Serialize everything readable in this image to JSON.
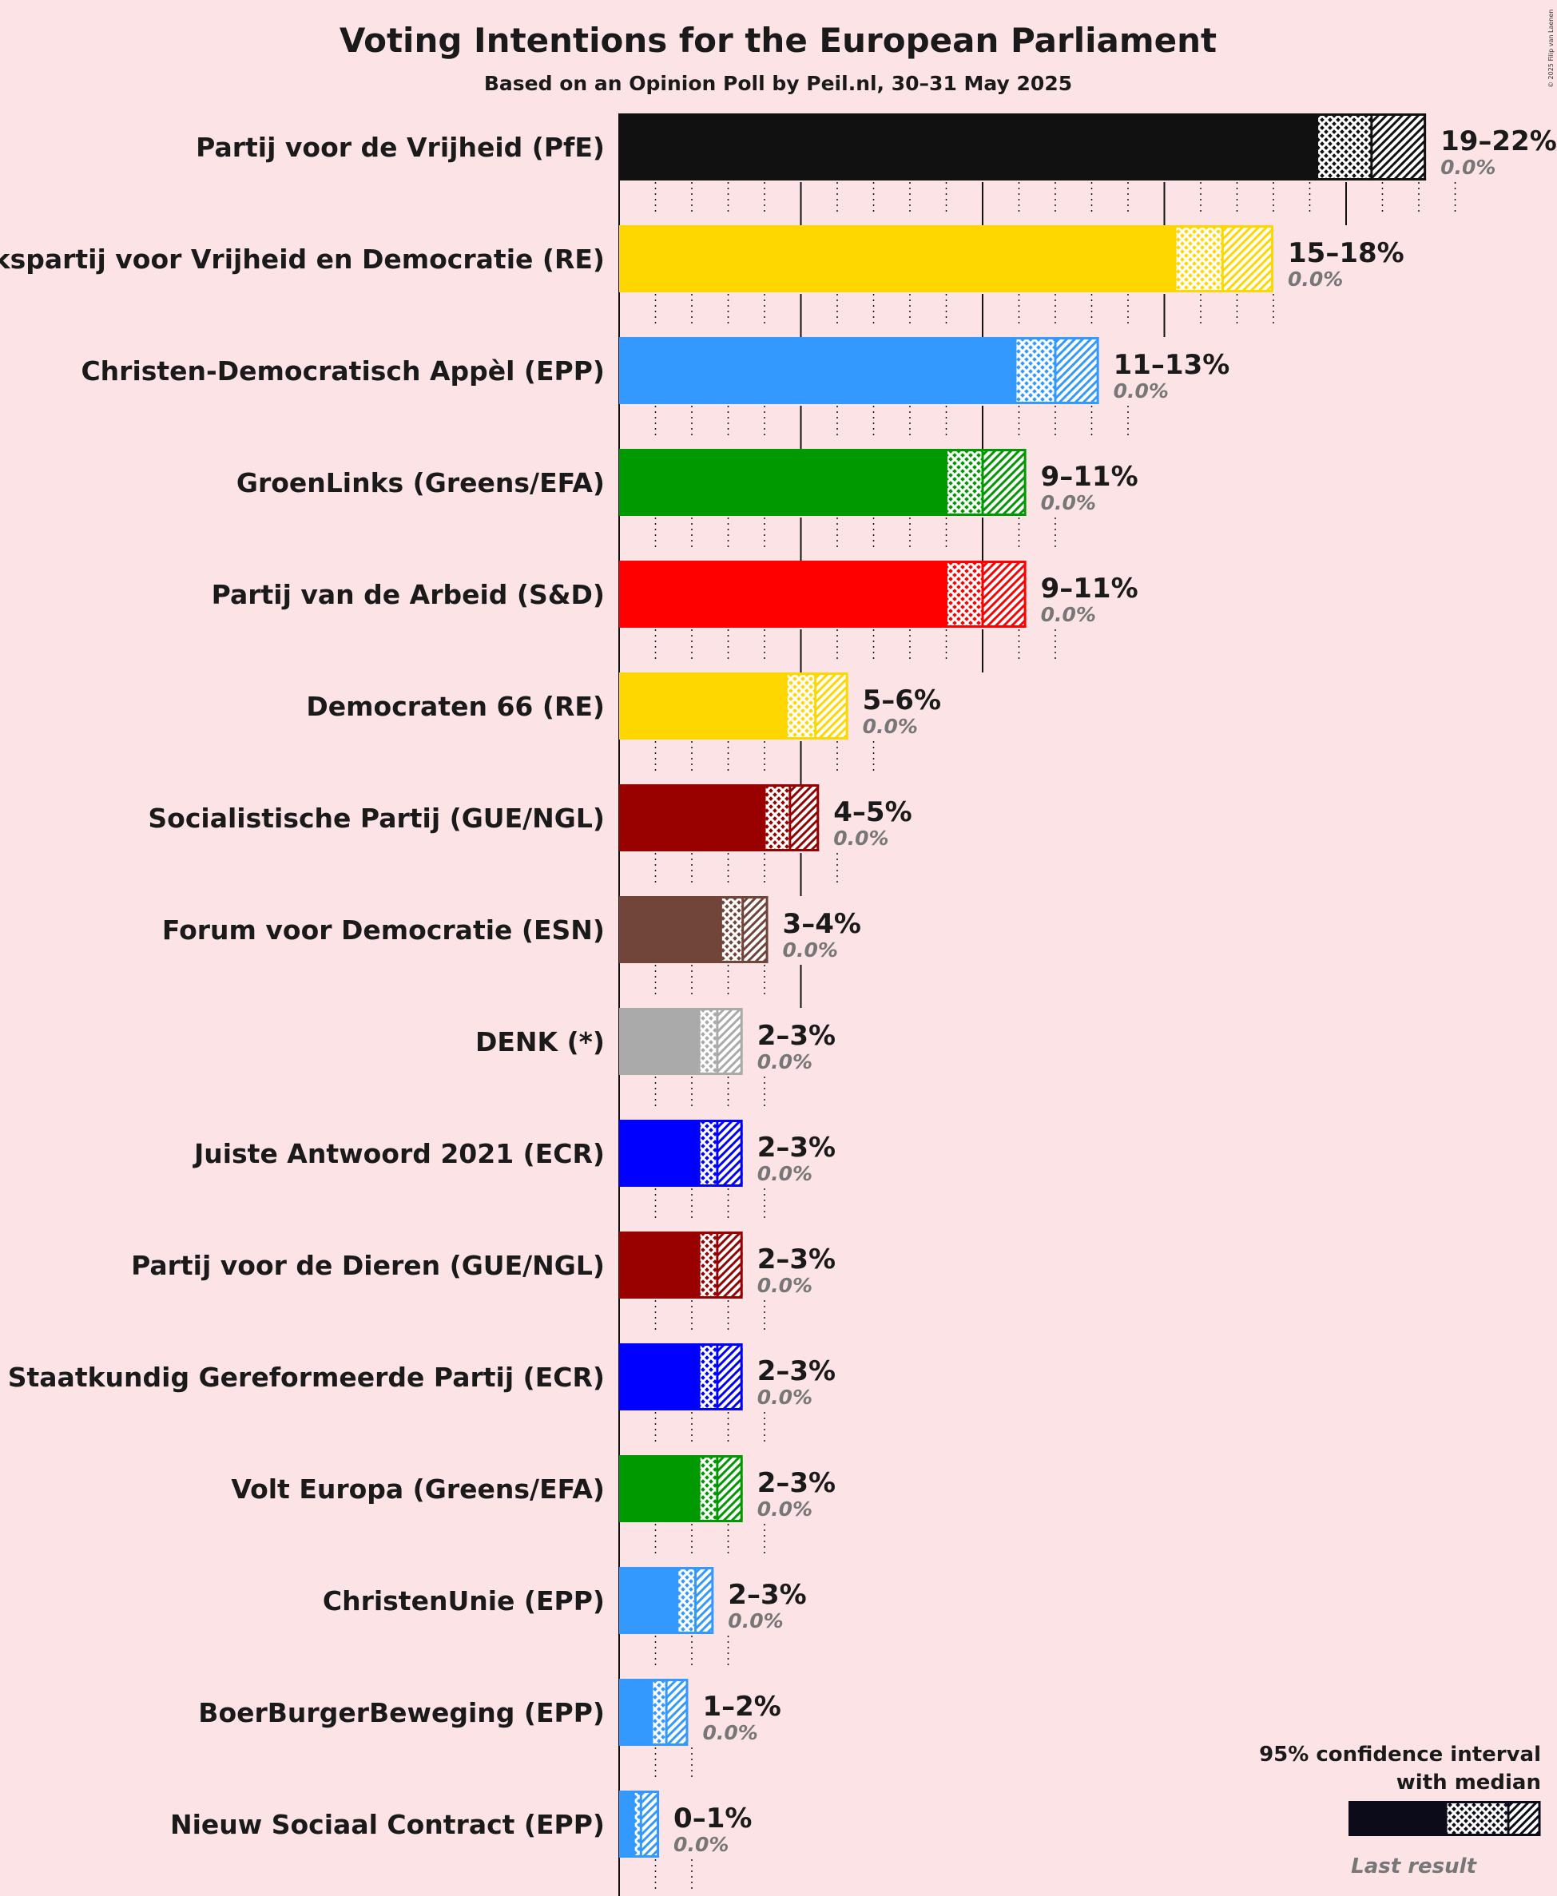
{
  "title": "Voting Intentions for the European Parliament",
  "subtitle": "Based on an Opinion Poll by Peil.nl, 30–31 May 2025",
  "copyright": "© 2025 Filip van Laenen",
  "legend": {
    "title_line1": "95% confidence interval",
    "title_line2": "with median",
    "last_result": "Last result"
  },
  "chart_data": {
    "type": "bar",
    "orientation": "horizontal",
    "title": "Voting Intentions for the European Parliament",
    "subtitle": "Based on an Opinion Poll by Peil.nl, 30–31 May 2025",
    "xlim": [
      0,
      22
    ],
    "grid": true,
    "legend_position": "bottom-right",
    "unit": "%",
    "parties": [
      {
        "name": "Partij voor de Vrijheid (PfE)",
        "color": "#111111",
        "low": 19.2,
        "median": 20.7,
        "high": 22.2,
        "range_label": "19–22%",
        "last_result": 0.0,
        "last_label": "0.0%"
      },
      {
        "name": "Volkspartij voor Vrijheid en Democratie (RE)",
        "color": "#FFD700",
        "low": 15.3,
        "median": 16.6,
        "high": 18.0,
        "range_label": "15–18%",
        "last_result": 0.0,
        "last_label": "0.0%"
      },
      {
        "name": "Christen-Democratisch Appèl (EPP)",
        "color": "#3399FF",
        "low": 10.9,
        "median": 12.0,
        "high": 13.2,
        "range_label": "11–13%",
        "last_result": 0.0,
        "last_label": "0.0%"
      },
      {
        "name": "GroenLinks (Greens/EFA)",
        "color": "#009900",
        "low": 9.0,
        "median": 10.0,
        "high": 11.2,
        "range_label": "9–11%",
        "last_result": 0.0,
        "last_label": "0.0%"
      },
      {
        "name": "Partij van de Arbeid (S&D)",
        "color": "#FF0000",
        "low": 9.0,
        "median": 10.0,
        "high": 11.2,
        "range_label": "9–11%",
        "last_result": 0.0,
        "last_label": "0.0%"
      },
      {
        "name": "Democraten 66 (RE)",
        "color": "#FFD700",
        "low": 4.6,
        "median": 5.4,
        "high": 6.3,
        "range_label": "5–6%",
        "last_result": 0.0,
        "last_label": "0.0%"
      },
      {
        "name": "Socialistische Partij (GUE/NGL)",
        "color": "#990000",
        "low": 4.0,
        "median": 4.7,
        "high": 5.5,
        "range_label": "4–5%",
        "last_result": 0.0,
        "last_label": "0.0%"
      },
      {
        "name": "Forum voor Democratie (ESN)",
        "color": "#71453A",
        "low": 2.8,
        "median": 3.4,
        "high": 4.1,
        "range_label": "3–4%",
        "last_result": 0.0,
        "last_label": "0.0%"
      },
      {
        "name": "DENK (*)",
        "color": "#AAAAAA",
        "low": 2.2,
        "median": 2.7,
        "high": 3.4,
        "range_label": "2–3%",
        "last_result": 0.0,
        "last_label": "0.0%"
      },
      {
        "name": "Juiste Antwoord 2021 (ECR)",
        "color": "#0000FF",
        "low": 2.2,
        "median": 2.7,
        "high": 3.4,
        "range_label": "2–3%",
        "last_result": 0.0,
        "last_label": "0.0%"
      },
      {
        "name": "Partij voor de Dieren (GUE/NGL)",
        "color": "#990000",
        "low": 2.2,
        "median": 2.7,
        "high": 3.4,
        "range_label": "2–3%",
        "last_result": 0.0,
        "last_label": "0.0%"
      },
      {
        "name": "Staatkundig Gereformeerde Partij (ECR)",
        "color": "#0000FF",
        "low": 2.2,
        "median": 2.7,
        "high": 3.4,
        "range_label": "2–3%",
        "last_result": 0.0,
        "last_label": "0.0%"
      },
      {
        "name": "Volt Europa (Greens/EFA)",
        "color": "#009900",
        "low": 2.2,
        "median": 2.7,
        "high": 3.4,
        "range_label": "2–3%",
        "last_result": 0.0,
        "last_label": "0.0%"
      },
      {
        "name": "ChristenUnie (EPP)",
        "color": "#3399FF",
        "low": 1.6,
        "median": 2.1,
        "high": 2.6,
        "range_label": "2–3%",
        "last_result": 0.0,
        "last_label": "0.0%"
      },
      {
        "name": "BoerBurgerBeweging (EPP)",
        "color": "#3399FF",
        "low": 0.9,
        "median": 1.3,
        "high": 1.9,
        "range_label": "1–2%",
        "last_result": 0.0,
        "last_label": "0.0%"
      },
      {
        "name": "Nieuw Sociaal Contract (EPP)",
        "color": "#3399FF",
        "low": 0.4,
        "median": 0.6,
        "high": 1.1,
        "range_label": "0–1%",
        "last_result": 0.0,
        "last_label": "0.0%"
      }
    ]
  }
}
